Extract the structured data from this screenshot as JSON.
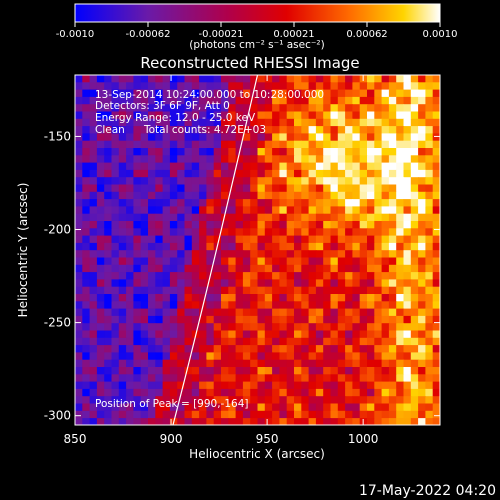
{
  "colorbar": {
    "tick_labels": [
      "-0.0010",
      "-0.00062",
      "-0.00021",
      "0.00021",
      "0.00062",
      "0.0010"
    ],
    "min": -0.001,
    "max": 0.001,
    "unit_label": "(photons cm⁻² s⁻¹ asec⁻²)"
  },
  "chart_data": {
    "type": "heatmap",
    "title": "Reconstructed RHESSI Image",
    "xlabel": "Heliocentric X (arcsec)",
    "ylabel": "Heliocentric Y (arcsec)",
    "xlim": [
      850,
      1040
    ],
    "ylim": [
      -305,
      -117
    ],
    "x_ticks": [
      850,
      900,
      950,
      1000
    ],
    "y_ticks": [
      -150,
      -200,
      -250,
      -300
    ],
    "colormap": "rainbow-hot (blue-purple-red-orange-yellow-white)",
    "limb_curve": [
      [
        901,
        -305
      ],
      [
        920,
        -230
      ],
      [
        942,
        -130
      ],
      [
        945,
        -117
      ]
    ],
    "annotations": {
      "time_range": "13-Sep-2014 10:24:00.000 to 10:28:00.000",
      "detectors": "Detectors: 3F 6F 9F, Att 0",
      "energy_range": "Energy Range: 12.0 - 25.0 keV",
      "method": "Clean",
      "total_counts": "Total counts: 4.72E+03",
      "peak": "Position of Peak = [990,-164]"
    },
    "peak_position": [
      990,
      -164
    ]
  },
  "footer": {
    "date": "17-May-2022 04:20"
  }
}
